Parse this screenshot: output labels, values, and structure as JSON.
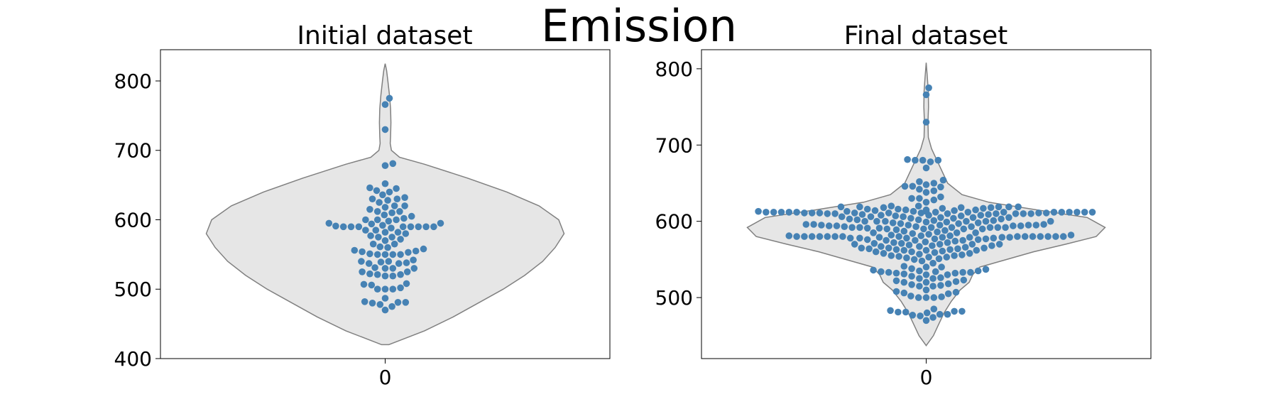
{
  "figure": {
    "title": "Emission"
  },
  "colors": {
    "point": "#4682b4",
    "violin_fill": "#e6e6e6",
    "violin_edge": "#808080"
  },
  "chart_data": [
    {
      "type": "violin-swarm",
      "title": "Initial dataset",
      "categories": [
        "0"
      ],
      "ylim": [
        400,
        845
      ],
      "yticks": [
        400,
        500,
        600,
        700,
        800
      ],
      "ytick_labels": [
        "400",
        "500",
        "600",
        "700",
        "800"
      ],
      "violin_range": [
        420,
        825
      ],
      "violin_density": [
        [
          420,
          0.02
        ],
        [
          440,
          0.22
        ],
        [
          460,
          0.38
        ],
        [
          480,
          0.52
        ],
        [
          500,
          0.66
        ],
        [
          520,
          0.78
        ],
        [
          540,
          0.88
        ],
        [
          560,
          0.95
        ],
        [
          580,
          1.0
        ],
        [
          600,
          0.97
        ],
        [
          620,
          0.86
        ],
        [
          640,
          0.68
        ],
        [
          660,
          0.46
        ],
        [
          680,
          0.22
        ],
        [
          690,
          0.08
        ],
        [
          700,
          0.035
        ],
        [
          710,
          0.028
        ],
        [
          720,
          0.03
        ],
        [
          740,
          0.032
        ],
        [
          760,
          0.03
        ],
        [
          780,
          0.024
        ],
        [
          800,
          0.015
        ],
        [
          815,
          0.008
        ],
        [
          825,
          0.0
        ]
      ],
      "points": [
        470,
        475,
        478,
        480,
        481,
        481,
        482,
        487,
        500,
        500,
        500,
        502,
        506,
        507,
        508,
        519,
        519,
        521,
        521,
        522,
        525,
        525,
        530,
        530,
        530,
        531,
        537,
        537,
        538,
        539,
        540,
        540,
        542,
        550,
        550,
        550,
        550,
        551,
        553,
        554,
        555,
        556,
        558,
        560,
        561,
        565,
        565,
        570,
        572,
        575,
        575,
        577,
        580,
        582,
        582,
        585,
        585,
        588,
        590,
        590,
        590,
        590,
        590,
        590,
        590,
        590,
        591,
        592,
        594,
        595,
        595,
        598,
        600,
        600,
        600,
        602,
        605,
        607,
        610,
        612,
        612,
        615,
        618,
        620,
        620,
        625,
        628,
        630,
        630,
        632,
        636,
        640,
        642,
        645,
        646,
        652,
        678,
        681,
        730,
        766,
        775
      ]
    },
    {
      "type": "violin-swarm",
      "title": "Final dataset",
      "categories": [
        "0"
      ],
      "ylim": [
        420,
        825
      ],
      "yticks": [
        500,
        600,
        700,
        800
      ],
      "ytick_labels": [
        "500",
        "600",
        "700",
        "800"
      ],
      "violin_range": [
        437,
        808
      ],
      "violin_density": [
        [
          437,
          0.0
        ],
        [
          450,
          0.04
        ],
        [
          465,
          0.07
        ],
        [
          480,
          0.1
        ],
        [
          495,
          0.14
        ],
        [
          510,
          0.19
        ],
        [
          520,
          0.24
        ],
        [
          530,
          0.26
        ],
        [
          540,
          0.3
        ],
        [
          550,
          0.45
        ],
        [
          560,
          0.6
        ],
        [
          570,
          0.78
        ],
        [
          580,
          0.95
        ],
        [
          592,
          1.0
        ],
        [
          605,
          0.9
        ],
        [
          615,
          0.62
        ],
        [
          625,
          0.35
        ],
        [
          635,
          0.2
        ],
        [
          650,
          0.12
        ],
        [
          665,
          0.09
        ],
        [
          680,
          0.06
        ],
        [
          695,
          0.03
        ],
        [
          710,
          0.012
        ],
        [
          730,
          0.01
        ],
        [
          750,
          0.013
        ],
        [
          770,
          0.012
        ],
        [
          790,
          0.006
        ],
        [
          808,
          0.0
        ]
      ],
      "points": [
        470,
        474,
        476,
        477,
        478,
        478,
        480,
        481,
        481,
        482,
        482,
        483,
        485,
        500,
        500,
        500,
        501,
        502,
        505,
        506,
        507,
        508,
        510,
        515,
        515,
        516,
        517,
        518,
        520,
        520,
        521,
        522,
        523,
        525,
        525,
        526,
        528,
        530,
        530,
        531,
        532,
        532,
        533,
        533,
        533,
        534,
        534,
        535,
        535,
        536,
        537,
        538,
        540,
        540,
        541,
        545,
        548,
        550,
        551,
        552,
        553,
        553,
        554,
        555,
        555,
        556,
        557,
        558,
        558,
        559,
        560,
        560,
        561,
        562,
        562,
        562,
        563,
        563,
        564,
        564,
        565,
        565,
        565,
        566,
        567,
        567,
        568,
        568,
        569,
        570,
        570,
        570,
        570,
        571,
        571,
        572,
        572,
        573,
        574,
        575,
        575,
        575,
        576,
        576,
        577,
        577,
        578,
        578,
        578,
        578,
        579,
        579,
        579,
        579,
        579,
        580,
        580,
        580,
        580,
        580,
        580,
        580,
        580,
        580,
        580,
        580,
        580,
        580,
        580,
        580,
        581,
        581,
        581,
        582,
        582,
        583,
        584,
        585,
        585,
        585,
        586,
        587,
        588,
        589,
        590,
        590,
        590,
        590,
        591,
        591,
        592,
        592,
        592,
        592,
        592,
        592,
        592,
        593,
        593,
        593,
        594,
        594,
        594,
        594,
        595,
        595,
        595,
        595,
        595,
        596,
        596,
        596,
        597,
        597,
        598,
        598,
        599,
        599,
        600,
        600,
        600,
        600,
        600,
        600,
        601,
        601,
        602,
        602,
        603,
        603,
        604,
        604,
        605,
        605,
        605,
        606,
        606,
        606,
        607,
        607,
        608,
        608,
        608,
        609,
        609,
        610,
        610,
        610,
        610,
        610,
        610,
        610,
        611,
        611,
        611,
        611,
        611,
        611,
        611,
        611,
        612,
        612,
        612,
        612,
        612,
        612,
        612,
        612,
        612,
        612,
        612,
        612,
        612,
        612,
        613,
        613,
        613,
        613,
        614,
        614,
        615,
        615,
        615,
        616,
        616,
        617,
        617,
        618,
        618,
        618,
        619,
        619,
        619,
        619,
        619,
        620,
        620,
        625,
        628,
        630,
        630,
        632,
        638,
        640,
        642,
        645,
        646,
        646,
        648,
        650,
        652,
        654,
        670,
        678,
        680,
        680,
        680,
        681,
        730,
        766,
        775
      ]
    }
  ]
}
